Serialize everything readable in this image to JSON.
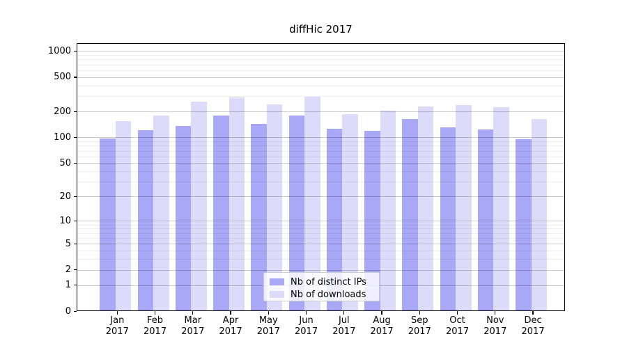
{
  "chart_data": {
    "type": "bar",
    "title": "diffHic 2017",
    "categories": [
      "Jan",
      "Feb",
      "Mar",
      "Apr",
      "May",
      "Jun",
      "Jul",
      "Aug",
      "Sep",
      "Oct",
      "Nov",
      "Dec"
    ],
    "category_year": "2017",
    "series": [
      {
        "name": "Nb of distinct IPs",
        "color": "#a8a8f6",
        "values": [
          97,
          121,
          137,
          181,
          145,
          181,
          127,
          119,
          164,
          132,
          124,
          96
        ]
      },
      {
        "name": "Nb of downloads",
        "color": "#dcdcfa",
        "values": [
          155,
          181,
          262,
          293,
          243,
          296,
          186,
          204,
          229,
          239,
          225,
          164
        ]
      }
    ],
    "y_axis": {
      "scale": "log10(1+y)",
      "tick_values": [
        0,
        1,
        2,
        5,
        10,
        20,
        50,
        100,
        200,
        500,
        1000
      ],
      "tick_labels": [
        "0",
        "1",
        "2",
        "5",
        "10",
        "20",
        "50",
        "100",
        "200",
        "500",
        "1000"
      ],
      "minor_tick_values": [
        3,
        4,
        6,
        7,
        8,
        9,
        30,
        40,
        60,
        70,
        80,
        90,
        300,
        400,
        600,
        700,
        800,
        900
      ],
      "ylim": [
        0,
        1250
      ]
    },
    "xlabel": "",
    "ylabel": "",
    "grid": "both",
    "legend": {
      "position": "lower-center",
      "entries": [
        "Nb of distinct IPs",
        "Nb of downloads"
      ]
    }
  },
  "colors": {
    "background": "#ffffff",
    "axis": "#000000",
    "major_grid": "rgba(0,0,0,0.20)",
    "minor_grid": "rgba(0,0,0,0.065)",
    "bar_ips": "#a8a8f6",
    "bar_downloads": "#dcdcfa"
  }
}
